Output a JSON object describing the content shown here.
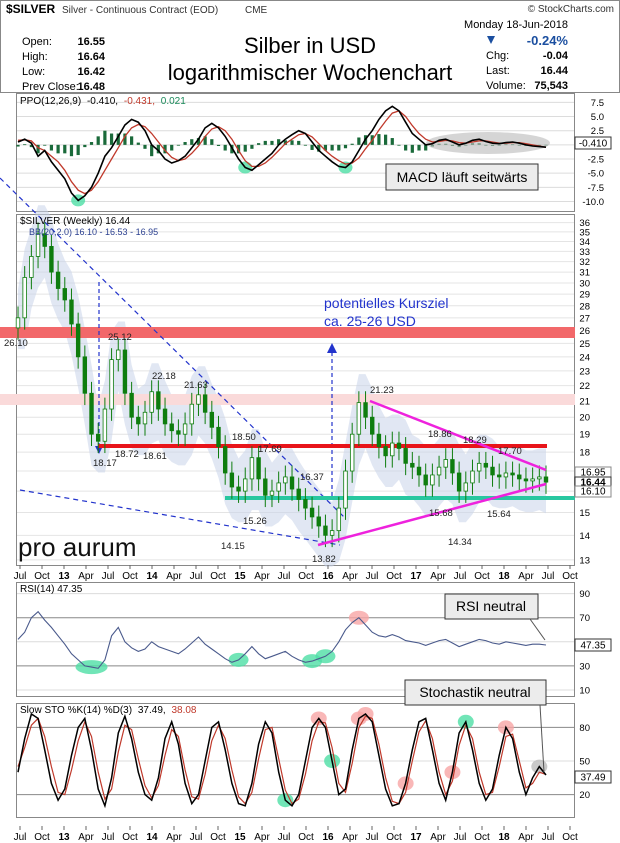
{
  "header": {
    "symbol": "$SILVER",
    "name": "Silver - Continuous Contract (EOD)",
    "exchange": "CME",
    "source": "© StockCharts.com",
    "date": "Monday  18-Jun-2018",
    "title_line1": "Silber in USD",
    "title_line2": "logarithmischer Wochenchart",
    "stats_left": [
      {
        "label": "Open:",
        "value": "16.55"
      },
      {
        "label": "High:",
        "value": "16.64"
      },
      {
        "label": "Low:",
        "value": "16.42"
      },
      {
        "label": "Prev Close:",
        "value": "16.48"
      }
    ],
    "change_pct": "-0.24%",
    "stats_right": [
      {
        "label": "Chg:",
        "value": "-0.04"
      },
      {
        "label": "Last:",
        "value": "16.44"
      },
      {
        "label": "Volume:",
        "value": "75,543"
      }
    ]
  },
  "colors": {
    "price": "#0e7d0e",
    "ppo": "#000000",
    "signal": "#c0392b",
    "histogram": "#1a6a3a",
    "magenta": "#ee22dd",
    "red_line": "#e8141a",
    "teal_line": "#28c7a0",
    "resistance_band": "#f2686a",
    "blue_dash": "#2233cc",
    "rsi": "#4a5a8c",
    "sto_k": "#000000",
    "sto_d": "#c0392b",
    "highlight_green": "#4ddfa5",
    "highlight_red": "#f7a5a5"
  },
  "chart_data": [
    {
      "type": "line",
      "panel": "ppo",
      "legend": "PPO(12,26,9) -0.410, -0.431, 0.021",
      "legend_parts": [
        "PPO(12,26,9)",
        "-0.410,",
        "-0.431,",
        "0.021"
      ],
      "y_ticks": [
        "7.5",
        "5.0",
        "2.5",
        "0.0",
        "-2.5",
        "-5.0",
        "-7.5",
        "-10.0"
      ],
      "ylim": [
        -11.5,
        8.8
      ],
      "last_label": "-0.410",
      "annotation": "MACD läuft seitwärts",
      "series": [
        {
          "values": [
            0.5,
            1.0,
            0.3,
            -2.0,
            -1.0,
            -3.0,
            -4.5,
            -6.0,
            -8.5,
            -9.8,
            -9.0,
            -7.5,
            -5.0,
            -2.0,
            -0.5,
            1.5,
            3.5,
            4.5,
            4.0,
            2.5,
            0.0,
            -1.0,
            -2.5,
            -3.2,
            -2.8,
            -2.0,
            -0.5,
            1.0,
            3.0,
            3.8,
            3.0,
            1.5,
            -0.5,
            -2.5,
            -4.0,
            -4.5,
            -3.5,
            -2.5,
            -1.5,
            0.0,
            1.0,
            1.8,
            2.5,
            2.0,
            0.5,
            -1.0,
            -2.0,
            -3.0,
            -3.8,
            -4.0,
            -3.0,
            -1.0,
            1.0,
            2.5,
            4.5,
            6.0,
            6.8,
            6.0,
            4.0,
            2.0,
            1.0,
            0.0,
            0.2,
            0.8,
            1.0,
            0.5,
            0.0,
            0.3,
            0.8,
            1.0,
            0.6,
            0.3,
            0.2,
            0.4,
            0.5,
            0.3,
            0.0,
            -0.2,
            -0.3,
            -0.41
          ]
        },
        {
          "values": [
            0.8,
            0.9,
            0.7,
            -0.5,
            -1.0,
            -2.0,
            -3.0,
            -4.5,
            -6.5,
            -8.0,
            -8.6,
            -8.0,
            -6.5,
            -4.5,
            -2.5,
            -0.5,
            1.5,
            3.0,
            3.6,
            3.2,
            2.0,
            0.5,
            -1.0,
            -2.2,
            -2.8,
            -2.5,
            -1.5,
            -0.2,
            1.5,
            2.8,
            3.2,
            2.5,
            1.0,
            -1.0,
            -2.8,
            -3.8,
            -3.8,
            -3.2,
            -2.2,
            -1.0,
            0.2,
            1.0,
            1.8,
            2.0,
            1.4,
            0.2,
            -1.0,
            -2.0,
            -2.8,
            -3.4,
            -3.2,
            -2.3,
            -0.7,
            0.8,
            2.6,
            4.2,
            5.6,
            6.0,
            5.0,
            3.4,
            2.0,
            1.0,
            0.5,
            0.6,
            0.8,
            0.7,
            0.4,
            0.3,
            0.5,
            0.7,
            0.7,
            0.5,
            0.3,
            0.3,
            0.4,
            0.4,
            0.2,
            0.0,
            -0.2,
            -0.431
          ]
        }
      ]
    },
    {
      "type": "candlestick",
      "panel": "price",
      "legend": "$SILVER (Weekly) 16.44",
      "bb_legend": "BB(20,2.0) 16.10 - 16.53 - 16.95",
      "scale": "log",
      "ylim": [
        12.8,
        36.5
      ],
      "y_ticks": [
        "36",
        "35",
        "34",
        "33",
        "32",
        "31",
        "30",
        "29",
        "28",
        "27",
        "26",
        "25",
        "24",
        "23",
        "22",
        "21",
        "20",
        "19",
        "18",
        "17",
        "16",
        "15",
        "14",
        "13"
      ],
      "close": [
        27.0,
        30.5,
        32.5,
        34.8,
        33.5,
        31.0,
        29.5,
        28.5,
        26.5,
        24.0,
        21.5,
        19.0,
        18.6,
        20.5,
        23.8,
        24.5,
        21.5,
        20.0,
        19.6,
        20.3,
        21.6,
        20.5,
        19.6,
        19.2,
        19.0,
        19.6,
        20.8,
        21.4,
        20.3,
        19.4,
        18.3,
        16.9,
        16.2,
        16.0,
        16.6,
        17.7,
        16.6,
        15.8,
        16.0,
        16.4,
        16.7,
        16.1,
        15.6,
        15.2,
        14.8,
        14.4,
        14.0,
        14.2,
        15.2,
        17.0,
        19.0,
        20.9,
        20.0,
        19.0,
        18.3,
        17.8,
        18.5,
        18.2,
        17.4,
        17.2,
        16.8,
        16.3,
        16.8,
        17.2,
        17.6,
        16.9,
        16.0,
        16.4,
        17.0,
        17.4,
        17.2,
        16.8,
        16.7,
        16.9,
        16.8,
        16.6,
        16.5,
        16.6,
        16.7,
        16.44
      ],
      "price_labels": [
        "26.10",
        "25.12",
        "22.18",
        "21.63",
        "18.17",
        "18.72",
        "18.61",
        "18.50",
        "17.69",
        "16.37",
        "15.26",
        "14.15",
        "13.82",
        "21.23",
        "18.86",
        "18.29",
        "17.70",
        "15.68",
        "15.64",
        "14.34"
      ],
      "annotation": "potentielles Kursziel\nca. 25-26 USD",
      "last_labels": [
        "16.95",
        "16.44",
        "16.10"
      ],
      "x_ticks": [
        "Jul",
        "Oct",
        "13",
        "Apr",
        "Jul",
        "Oct",
        "14",
        "Apr",
        "Jul",
        "Oct",
        "15",
        "Apr",
        "Jul",
        "Oct",
        "16",
        "Apr",
        "Jul",
        "Oct",
        "17",
        "Apr",
        "Jul",
        "Oct",
        "18",
        "Apr",
        "Jul",
        "Oct"
      ]
    },
    {
      "type": "line",
      "panel": "rsi",
      "legend": "RSI(14) 47.35",
      "y_ticks": [
        "90",
        "70",
        "50",
        "30",
        "10"
      ],
      "ylim": [
        5,
        98
      ],
      "last_label": "47.35",
      "annotation": "RSI neutral",
      "values": [
        52,
        58,
        70,
        75,
        68,
        62,
        55,
        48,
        40,
        35,
        30,
        29,
        28,
        35,
        55,
        62,
        50,
        45,
        42,
        44,
        50,
        46,
        44,
        42,
        40,
        44,
        49,
        54,
        48,
        44,
        40,
        36,
        33,
        35,
        40,
        46,
        40,
        36,
        38,
        40,
        42,
        38,
        35,
        33,
        34,
        36,
        38,
        42,
        50,
        60,
        66,
        70,
        64,
        58,
        55,
        54,
        56,
        54,
        51,
        50,
        49,
        47,
        49,
        51,
        52,
        49,
        46,
        48,
        50,
        52,
        51,
        49,
        48,
        50,
        49,
        48,
        47,
        48,
        48,
        47.35
      ]
    },
    {
      "type": "line",
      "panel": "sto",
      "legend_parts": [
        "Slow STO %K(14) %D(3)",
        "37.49,",
        "38.08"
      ],
      "y_ticks": [
        "80",
        "50",
        "20"
      ],
      "ylim": [
        0,
        100
      ],
      "last_label": "37.49",
      "annotation": "Stochastik neutral",
      "series": [
        {
          "values": [
            40,
            70,
            92,
            88,
            60,
            30,
            15,
            25,
            55,
            80,
            88,
            60,
            25,
            10,
            35,
            75,
            90,
            70,
            40,
            20,
            15,
            35,
            70,
            85,
            65,
            30,
            12,
            20,
            50,
            80,
            85,
            60,
            30,
            12,
            10,
            30,
            65,
            85,
            75,
            40,
            15,
            10,
            20,
            50,
            80,
            88,
            80,
            50,
            20,
            25,
            60,
            88,
            92,
            85,
            55,
            25,
            10,
            12,
            30,
            60,
            85,
            88,
            60,
            30,
            15,
            40,
            75,
            85,
            60,
            30,
            15,
            25,
            55,
            80,
            70,
            40,
            20,
            35,
            45,
            37.49
          ]
        },
        {
          "values": [
            45,
            62,
            82,
            88,
            72,
            45,
            22,
            20,
            42,
            68,
            85,
            72,
            40,
            16,
            25,
            58,
            82,
            78,
            52,
            28,
            17,
            28,
            55,
            78,
            72,
            42,
            18,
            16,
            38,
            68,
            82,
            70,
            42,
            18,
            12,
            22,
            52,
            78,
            80,
            52,
            24,
            12,
            16,
            38,
            68,
            85,
            84,
            62,
            30,
            22,
            48,
            80,
            90,
            88,
            65,
            35,
            14,
            12,
            22,
            50,
            76,
            86,
            70,
            40,
            20,
            32,
            64,
            82,
            70,
            40,
            20,
            22,
            45,
            72,
            74,
            50,
            26,
            30,
            40,
            38.08
          ]
        }
      ]
    }
  ],
  "watermark": "pro aurum"
}
